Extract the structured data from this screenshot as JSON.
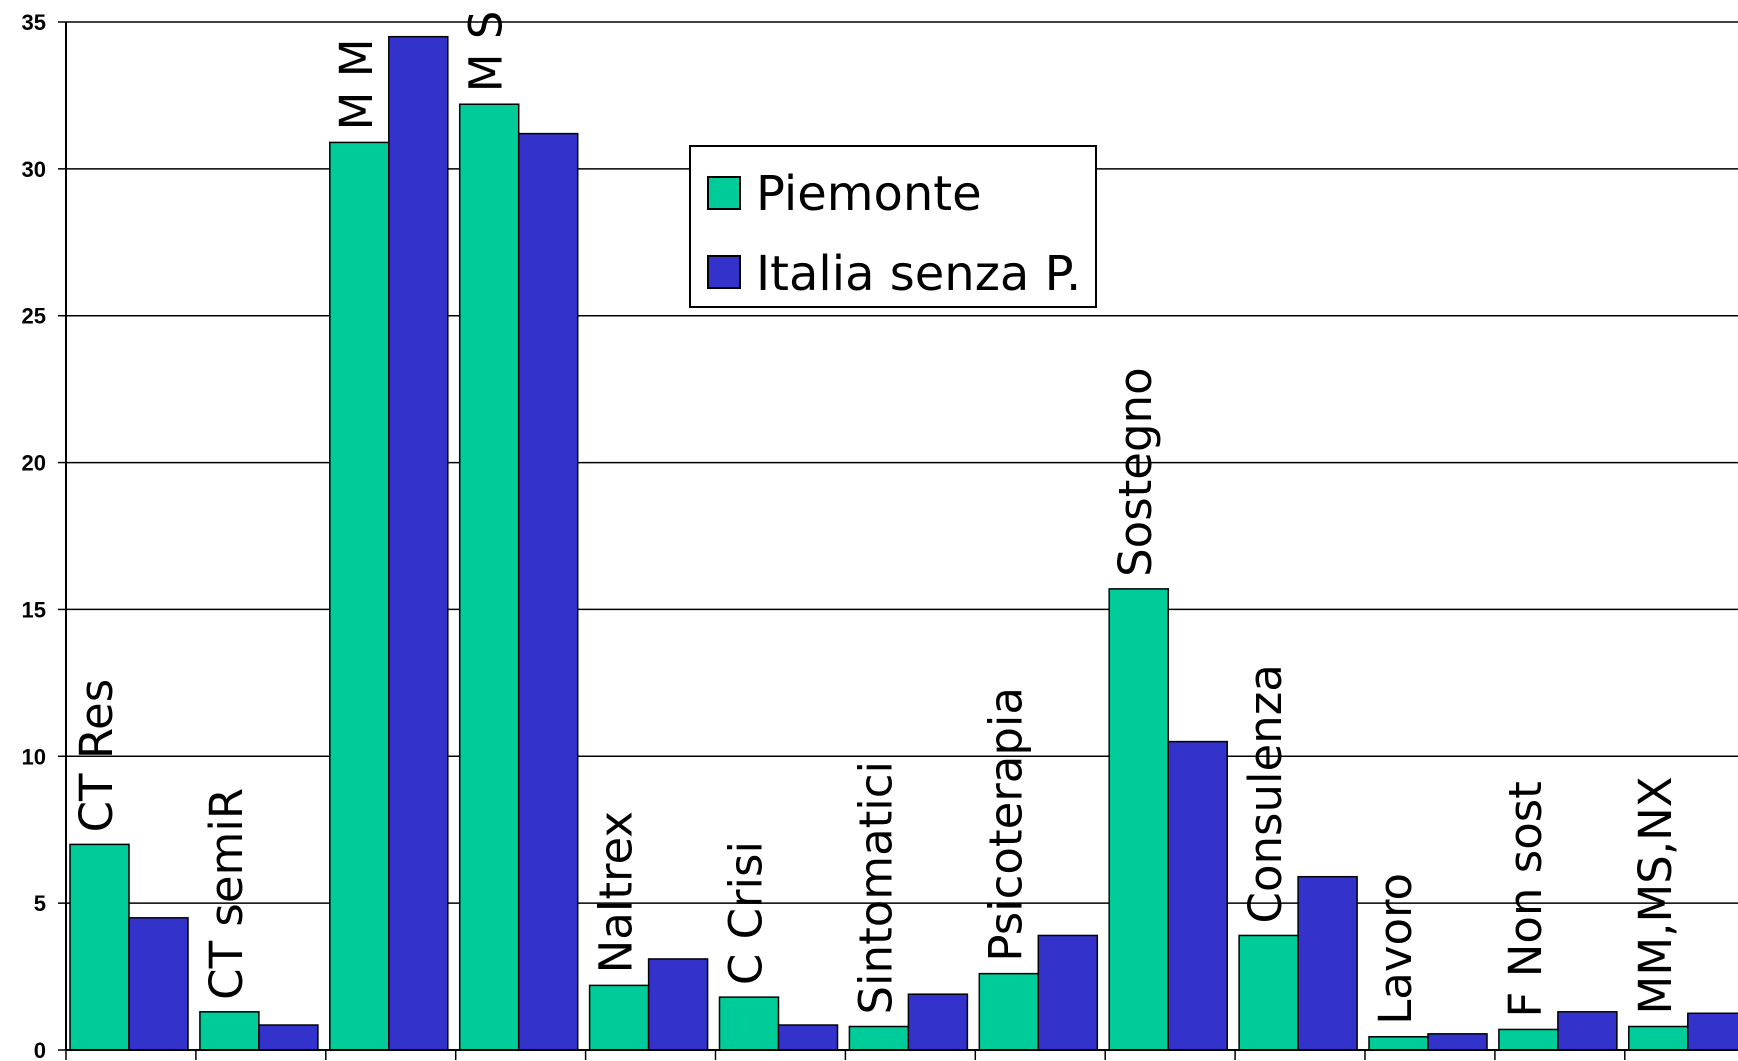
{
  "chart_data": {
    "type": "bar",
    "title": "",
    "xlabel": "",
    "ylabel": "",
    "ylim": [
      0,
      35
    ],
    "yticks": [
      "0",
      "5",
      "10",
      "15",
      "20",
      "25",
      "30",
      "35"
    ],
    "grid": true,
    "legend_position": "top-center",
    "categories": [
      "CT Res",
      "CT semiR",
      "M M",
      "M S",
      "Naltrex",
      "C Crisi",
      "Sintomatici",
      "Psicoterapia",
      "Sostegno",
      "Consulenza",
      "Lavoro",
      "F Non sost",
      "MM,MS,NX"
    ],
    "series": [
      {
        "name": "Piemonte",
        "color": "#00cc99",
        "values": [
          7.0,
          1.3,
          30.9,
          32.2,
          2.2,
          1.8,
          0.8,
          2.6,
          15.7,
          3.9,
          0.45,
          0.7,
          0.8
        ]
      },
      {
        "name": "Italia senza P.",
        "color": "#3333cc",
        "values": [
          4.5,
          0.85,
          34.5,
          31.2,
          3.1,
          0.85,
          1.9,
          3.9,
          10.5,
          5.9,
          0.55,
          1.3,
          1.25
        ]
      }
    ]
  }
}
